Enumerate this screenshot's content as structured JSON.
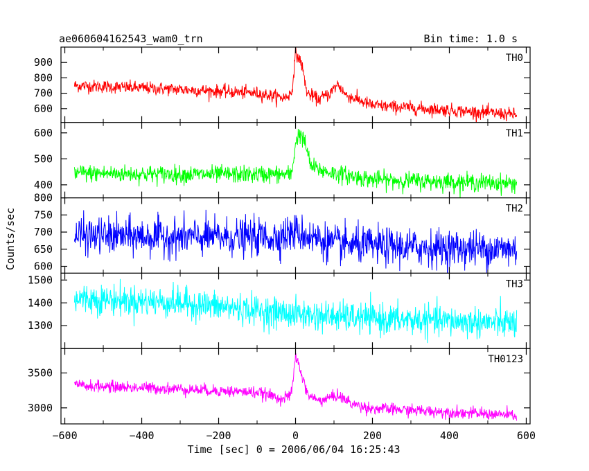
{
  "chart_data": {
    "type": "line",
    "title": "ae060604162543_wam0_trn",
    "bin_time_label": "Bin time: 1.0 s",
    "xlabel": "Time [sec] 0 = 2006/06/04 16:25:43",
    "ylabel": "Counts/sec",
    "xlim": [
      -610,
      610
    ],
    "x_ticks": [
      -600,
      -400,
      -200,
      0,
      200,
      400,
      600
    ],
    "x_range_data": [
      -575,
      575
    ],
    "series": [
      {
        "name": "TH0",
        "color": "#ff0000",
        "ylim": [
          510,
          1000
        ],
        "yticks": [
          600,
          700,
          800,
          900
        ],
        "noise": 35,
        "profile": [
          [
            -575,
            750
          ],
          [
            -300,
            725
          ],
          [
            -100,
            700
          ],
          [
            -30,
            670
          ],
          [
            -10,
            700
          ],
          [
            0,
            960
          ],
          [
            15,
            900
          ],
          [
            30,
            700
          ],
          [
            60,
            660
          ],
          [
            90,
            700
          ],
          [
            110,
            760
          ],
          [
            130,
            690
          ],
          [
            200,
            620
          ],
          [
            400,
            590
          ],
          [
            575,
            560
          ]
        ]
      },
      {
        "name": "TH1",
        "color": "#00ff00",
        "ylim": [
          350,
          640
        ],
        "yticks": [
          400,
          500,
          600
        ],
        "noise": 28,
        "profile": [
          [
            -575,
            445
          ],
          [
            -300,
            440
          ],
          [
            -50,
            440
          ],
          [
            -10,
            440
          ],
          [
            0,
            560
          ],
          [
            10,
            600
          ],
          [
            25,
            560
          ],
          [
            40,
            470
          ],
          [
            80,
            450
          ],
          [
            200,
            420
          ],
          [
            575,
            405
          ]
        ]
      },
      {
        "name": "TH2",
        "color": "#0000ff",
        "ylim": [
          580,
          800
        ],
        "yticks": [
          600,
          650,
          700,
          750,
          800
        ],
        "noise": 45,
        "profile": [
          [
            -575,
            690
          ],
          [
            -300,
            685
          ],
          [
            -50,
            685
          ],
          [
            0,
            700
          ],
          [
            30,
            690
          ],
          [
            100,
            665
          ],
          [
            300,
            655
          ],
          [
            575,
            650
          ]
        ]
      },
      {
        "name": "TH3",
        "color": "#00ffff",
        "ylim": [
          1200,
          1530
        ],
        "yticks": [
          1300,
          1400,
          1500
        ],
        "noise": 55,
        "profile": [
          [
            -575,
            1420
          ],
          [
            -300,
            1400
          ],
          [
            0,
            1350
          ],
          [
            200,
            1330
          ],
          [
            575,
            1310
          ]
        ]
      },
      {
        "name": "TH0123",
        "color": "#ff00ff",
        "ylim": [
          2770,
          3850
        ],
        "yticks": [
          3000,
          3500
        ],
        "noise": 70,
        "profile": [
          [
            -575,
            3320
          ],
          [
            -300,
            3270
          ],
          [
            -100,
            3220
          ],
          [
            -30,
            3130
          ],
          [
            -10,
            3200
          ],
          [
            0,
            3750
          ],
          [
            15,
            3500
          ],
          [
            30,
            3200
          ],
          [
            60,
            3100
          ],
          [
            110,
            3180
          ],
          [
            150,
            3050
          ],
          [
            200,
            2990
          ],
          [
            400,
            2940
          ],
          [
            575,
            2890
          ]
        ]
      }
    ]
  }
}
